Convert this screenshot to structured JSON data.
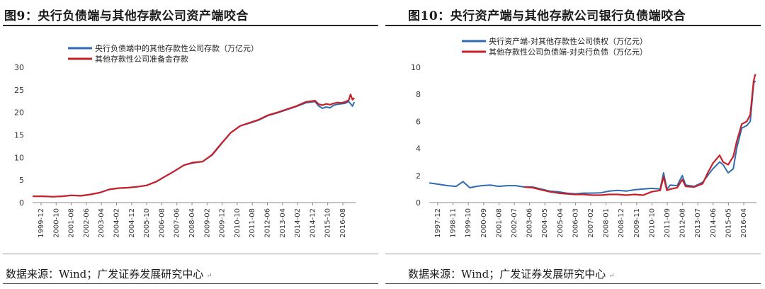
{
  "figures": [
    {
      "title": "图9：央行负债端与其他存款公司资产端咬合",
      "source": "数据来源：Wind；广发证券发展研究中心"
    },
    {
      "title": "图10：央行资产端与其他存款公司银行负债端咬合",
      "source": "数据来源：Wind；广发证券发展研究中心"
    }
  ],
  "chart_data": [
    {
      "type": "line",
      "title": "图9：央行负债端与其他存款公司资产端咬合",
      "ylim": [
        0,
        30
      ],
      "yticks": [
        "0",
        "5",
        "10",
        "15",
        "20",
        "25",
        "30"
      ],
      "x_start": 1999.917,
      "x_end": 2017.167,
      "xticks": [
        "1999-12",
        "2000-10",
        "2001-08",
        "2002-06",
        "2003-04",
        "2004-02",
        "2004-12",
        "2005-10",
        "2006-08",
        "2007-06",
        "2008-04",
        "2009-02",
        "2009-12",
        "2010-10",
        "2011-08",
        "2012-06",
        "2013-04",
        "2014-02",
        "2014-12",
        "2015-10",
        "2016-08"
      ],
      "legend_position": "top-center",
      "series": [
        {
          "name": "央行负债端中的其他存款性公司存款（万亿元）",
          "color": "#2e6bb0",
          "x": [
            1999.92,
            2000.5,
            2001.0,
            2001.5,
            2002.0,
            2002.5,
            2003.0,
            2003.5,
            2004.0,
            2004.5,
            2005.0,
            2005.5,
            2006.0,
            2006.5,
            2007.0,
            2007.5,
            2008.0,
            2008.5,
            2009.0,
            2009.5,
            2010.0,
            2010.5,
            2011.0,
            2011.5,
            2012.0,
            2012.5,
            2013.0,
            2013.5,
            2014.0,
            2014.5,
            2015.0,
            2015.2,
            2015.4,
            2015.6,
            2015.8,
            2016.0,
            2016.2,
            2016.4,
            2016.6,
            2016.8,
            2017.0,
            2017.1
          ],
          "y": [
            1.4,
            1.4,
            1.3,
            1.4,
            1.6,
            1.5,
            1.8,
            2.2,
            2.9,
            3.2,
            3.3,
            3.5,
            3.8,
            4.6,
            5.8,
            7.0,
            8.3,
            8.8,
            9.1,
            10.5,
            13.0,
            15.5,
            17.0,
            17.6,
            18.3,
            19.3,
            19.9,
            20.6,
            21.3,
            22.1,
            22.4,
            21.4,
            20.9,
            21.2,
            21.0,
            21.6,
            21.8,
            21.9,
            22.0,
            22.4,
            21.4,
            22.3
          ]
        },
        {
          "name": "其他存款性公司准备金存款",
          "color": "#c8202a",
          "x": [
            1999.92,
            2000.5,
            2001.0,
            2001.5,
            2002.0,
            2002.5,
            2003.0,
            2003.5,
            2004.0,
            2004.5,
            2005.0,
            2005.5,
            2006.0,
            2006.5,
            2007.0,
            2007.5,
            2008.0,
            2008.5,
            2009.0,
            2009.5,
            2010.0,
            2010.5,
            2011.0,
            2011.5,
            2012.0,
            2012.5,
            2013.0,
            2013.5,
            2014.0,
            2014.5,
            2015.0,
            2015.2,
            2015.4,
            2015.6,
            2015.8,
            2016.0,
            2016.2,
            2016.4,
            2016.6,
            2016.8,
            2016.9,
            2017.0,
            2017.1
          ],
          "y": [
            1.4,
            1.4,
            1.3,
            1.4,
            1.6,
            1.5,
            1.8,
            2.2,
            2.9,
            3.2,
            3.3,
            3.5,
            3.8,
            4.6,
            5.8,
            7.0,
            8.3,
            8.9,
            9.1,
            10.6,
            13.1,
            15.5,
            17.0,
            17.7,
            18.4,
            19.4,
            20.0,
            20.7,
            21.4,
            22.3,
            22.6,
            21.8,
            21.6,
            21.9,
            21.7,
            22.0,
            22.2,
            22.1,
            22.3,
            22.7,
            24.0,
            22.8,
            23.2
          ]
        }
      ]
    },
    {
      "type": "line",
      "title": "图10：央行资产端与其他存款公司银行负债端咬合",
      "ylim": [
        0,
        10
      ],
      "yticks": [
        "0",
        "2",
        "4",
        "6",
        "8",
        "10"
      ],
      "x_start": 1997.917,
      "x_end": 2017.167,
      "xticks": [
        "1997-12",
        "1998-11",
        "1999-10",
        "2000-09",
        "2001-08",
        "2002-07",
        "2003-06",
        "2004-05",
        "2005-04",
        "2006-03",
        "2007-02",
        "2008-01",
        "2008-12",
        "2009-11",
        "2010-10",
        "2011-09",
        "2012-08",
        "2013-07",
        "2014-06",
        "2015-05",
        "2016-04"
      ],
      "legend_position": "top-center",
      "series": [
        {
          "name": "央行资产端-对其他存款性公司债权（万亿元）",
          "color": "#2e6bb0",
          "x": [
            1997.92,
            1998.5,
            1999.0,
            1999.5,
            1999.9,
            2000.3,
            2000.7,
            2001.0,
            2001.5,
            2002.0,
            2002.5,
            2003.0,
            2003.5,
            2004.0,
            2004.5,
            2005.0,
            2005.5,
            2006.0,
            2006.5,
            2007.0,
            2007.5,
            2008.0,
            2008.5,
            2009.0,
            2009.5,
            2010.0,
            2010.5,
            2011.0,
            2011.5,
            2011.7,
            2011.9,
            2012.1,
            2012.5,
            2012.8,
            2013.0,
            2013.5,
            2014.0,
            2014.3,
            2014.6,
            2015.0,
            2015.2,
            2015.5,
            2015.8,
            2016.0,
            2016.3,
            2016.6,
            2016.8,
            2017.0,
            2017.1
          ],
          "y": [
            1.45,
            1.35,
            1.25,
            1.2,
            1.55,
            1.1,
            1.2,
            1.25,
            1.3,
            1.2,
            1.25,
            1.25,
            1.15,
            1.15,
            1.0,
            0.85,
            0.8,
            0.7,
            0.65,
            0.7,
            0.7,
            0.72,
            0.85,
            0.9,
            0.85,
            0.95,
            1.0,
            1.05,
            1.0,
            2.2,
            1.0,
            1.3,
            1.25,
            2.0,
            1.3,
            1.2,
            1.5,
            2.0,
            2.5,
            3.0,
            2.8,
            2.2,
            2.5,
            4.0,
            5.5,
            5.7,
            6.0,
            8.8,
            9.0
          ]
        },
        {
          "name": "其他存款性公司负债端-对央行负债（万亿元）",
          "color": "#c8202a",
          "x": [
            2003.5,
            2004.0,
            2004.5,
            2005.0,
            2005.5,
            2006.0,
            2006.5,
            2007.0,
            2007.5,
            2008.0,
            2008.5,
            2009.0,
            2009.5,
            2010.0,
            2010.5,
            2011.0,
            2011.5,
            2011.7,
            2011.9,
            2012.1,
            2012.5,
            2012.8,
            2013.0,
            2013.5,
            2014.0,
            2014.3,
            2014.6,
            2015.0,
            2015.2,
            2015.5,
            2015.8,
            2016.0,
            2016.3,
            2016.6,
            2016.8,
            2017.0,
            2017.1
          ],
          "y": [
            1.15,
            1.1,
            0.95,
            0.8,
            0.7,
            0.65,
            0.6,
            0.6,
            0.55,
            0.55,
            0.6,
            0.6,
            0.55,
            0.6,
            0.55,
            0.8,
            0.9,
            1.9,
            0.9,
            1.0,
            1.1,
            1.7,
            1.2,
            1.15,
            1.4,
            2.2,
            2.9,
            3.5,
            3.0,
            2.8,
            3.4,
            4.5,
            5.8,
            6.0,
            6.5,
            9.0,
            9.5
          ]
        }
      ]
    }
  ]
}
